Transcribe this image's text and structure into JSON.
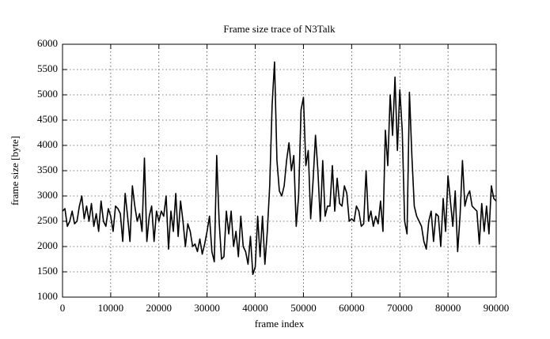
{
  "chart_data": {
    "type": "line",
    "title": "Frame size trace of N3Talk",
    "xlabel": "frame index",
    "ylabel": "frame size [byte]",
    "x": [
      0,
      500,
      1000,
      1500,
      2000,
      2500,
      3000,
      3500,
      4000,
      4500,
      5000,
      5500,
      6000,
      6500,
      7000,
      7500,
      8000,
      8500,
      9000,
      9500,
      10000,
      10500,
      11000,
      11500,
      12000,
      12500,
      13000,
      13500,
      14000,
      14500,
      15000,
      15500,
      16000,
      16500,
      17000,
      17500,
      18000,
      18500,
      19000,
      19500,
      20000,
      20500,
      21000,
      21500,
      22000,
      22500,
      23000,
      23500,
      24000,
      24500,
      25000,
      25500,
      26000,
      26500,
      27000,
      27500,
      28000,
      28500,
      29000,
      29500,
      30000,
      30500,
      31000,
      31500,
      32000,
      32500,
      33000,
      33500,
      34000,
      34500,
      35000,
      35500,
      36000,
      36500,
      37000,
      37500,
      38000,
      38500,
      39000,
      39500,
      40000,
      40500,
      41000,
      41500,
      42000,
      42500,
      43000,
      43500,
      44000,
      44500,
      45000,
      45500,
      46000,
      46500,
      47000,
      47500,
      48000,
      48500,
      49000,
      49500,
      50000,
      50500,
      51000,
      51500,
      52000,
      52500,
      53000,
      53500,
      54000,
      54500,
      55000,
      55500,
      56000,
      56500,
      57000,
      57500,
      58000,
      58500,
      59000,
      59500,
      60000,
      60500,
      61000,
      61500,
      62000,
      62500,
      63000,
      63500,
      64000,
      64500,
      65000,
      65500,
      66000,
      66500,
      67000,
      67500,
      68000,
      68500,
      69000,
      69500,
      70000,
      70500,
      71000,
      71500,
      72000,
      72500,
      73000,
      73500,
      74000,
      74500,
      75000,
      75500,
      76000,
      76500,
      77000,
      77500,
      78000,
      78500,
      79000,
      79500,
      80000,
      80500,
      81000,
      81500,
      82000,
      82500,
      83000,
      83500,
      84000,
      84500,
      85000,
      85500,
      86000,
      86500,
      87000,
      87500,
      88000,
      88500,
      89000,
      89500,
      90000
    ],
    "series": [
      {
        "name": "N3Talk",
        "color": "#000000",
        "values": [
          2700,
          2750,
          2400,
          2500,
          2700,
          2450,
          2500,
          2800,
          3000,
          2550,
          2800,
          2500,
          2850,
          2400,
          2650,
          2300,
          2900,
          2500,
          2400,
          2750,
          2600,
          2300,
          2800,
          2750,
          2650,
          2100,
          3050,
          2600,
          2100,
          3200,
          2800,
          2500,
          2650,
          2300,
          3750,
          2100,
          2600,
          2800,
          2100,
          2700,
          2500,
          2700,
          2600,
          3000,
          1950,
          2700,
          2300,
          3050,
          2200,
          2900,
          2500,
          2000,
          2450,
          2300,
          2000,
          2050,
          1900,
          2150,
          1850,
          2050,
          2300,
          2600,
          1900,
          1700,
          3800,
          2500,
          1750,
          1800,
          2700,
          2250,
          2700,
          2000,
          2300,
          1800,
          2600,
          2000,
          1900,
          1650,
          2200,
          1450,
          1600,
          2600,
          1800,
          2600,
          1650,
          2300,
          3200,
          4800,
          5650,
          3700,
          3100,
          3000,
          3200,
          3700,
          4050,
          3500,
          3800,
          2400,
          3000,
          4700,
          4950,
          3600,
          3900,
          2550,
          3300,
          4200,
          3500,
          2500,
          3700,
          2600,
          2800,
          2800,
          3600,
          2700,
          3350,
          2850,
          2800,
          3200,
          3050,
          2500,
          2550,
          2500,
          2800,
          2700,
          2400,
          2450,
          3500,
          2500,
          2700,
          2400,
          2600,
          2450,
          2900,
          2300,
          4300,
          3600,
          5000,
          4200,
          5350,
          3900,
          5100,
          4300,
          2500,
          2250,
          5050,
          3800,
          2800,
          2600,
          2500,
          2400,
          2100,
          1950,
          2500,
          2700,
          2100,
          2650,
          2600,
          2000,
          2950,
          2300,
          3400,
          2900,
          2400,
          3100,
          1900,
          2600,
          3700,
          2800,
          3000,
          3100,
          2800,
          2750,
          2700,
          2050,
          2850,
          2300,
          2800,
          2250,
          3200,
          2950,
          2900
        ]
      }
    ],
    "xlim": [
      0,
      90000
    ],
    "xticks": [
      0,
      10000,
      20000,
      30000,
      40000,
      50000,
      60000,
      70000,
      80000,
      90000
    ],
    "ylim": [
      1000,
      6000
    ],
    "yticks": [
      1000,
      1500,
      2000,
      2500,
      3000,
      3500,
      4000,
      4500,
      5000,
      5500,
      6000
    ],
    "grid": true
  }
}
